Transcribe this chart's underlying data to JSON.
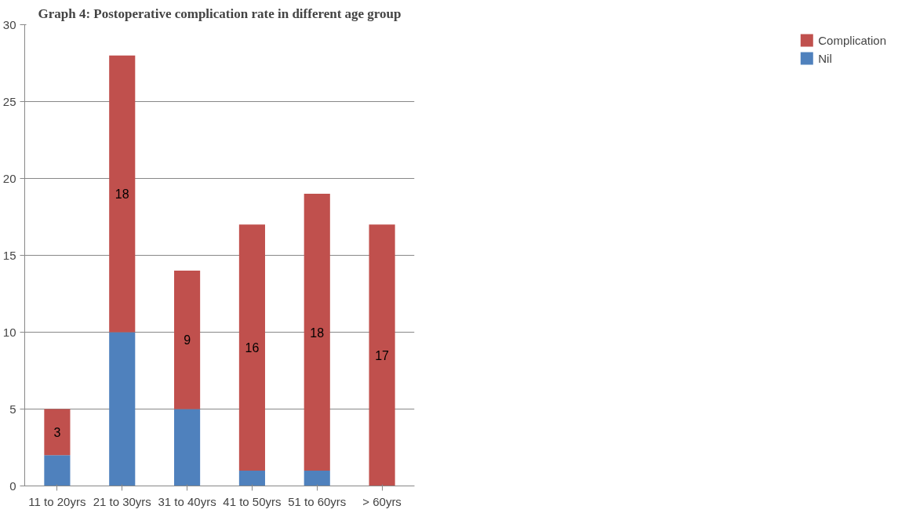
{
  "chart_data": {
    "type": "bar",
    "title": "Graph 4: Postoperative complication rate in different age group",
    "stacked": true,
    "categories": [
      "11 to 20yrs",
      "21 to 30yrs",
      "31 to 40yrs",
      "41 to 50yrs",
      "51 to 60yrs",
      "> 60yrs"
    ],
    "series": [
      {
        "name": "Nil",
        "color": "#4f81bd",
        "values": [
          2,
          10,
          5,
          1,
          1,
          0
        ]
      },
      {
        "name": "Complication",
        "color": "#c0504d",
        "values": [
          3,
          18,
          9,
          16,
          18,
          17
        ],
        "value_labels": [
          "3",
          "18",
          "9",
          "16",
          "18",
          "17"
        ]
      }
    ],
    "ylim": [
      0,
      30
    ],
    "yticks": [
      0,
      5,
      10,
      15,
      20,
      25,
      30
    ],
    "grid": "y",
    "legend": "right"
  }
}
